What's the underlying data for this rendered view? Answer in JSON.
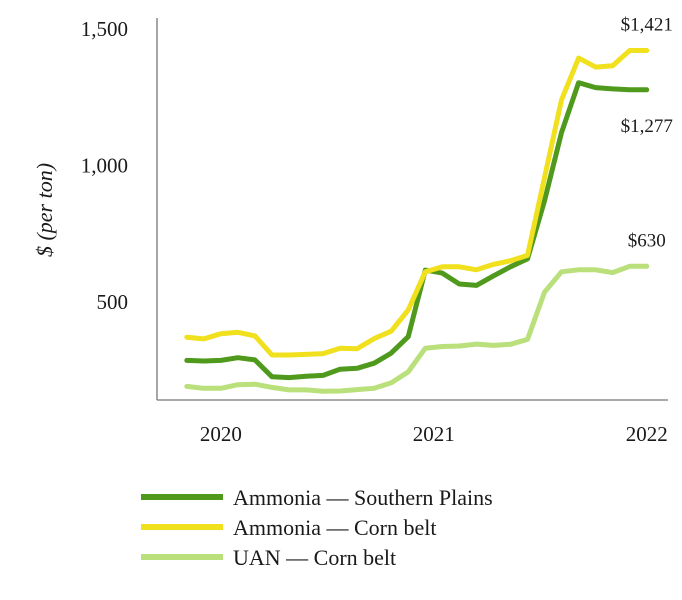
{
  "chart_data": {
    "type": "line",
    "title": "",
    "xlabel": "",
    "ylabel": "$ (per ton)",
    "ylim": [
      140,
      1540
    ],
    "xlim": [
      2019.7,
      2022.1
    ],
    "y_ticks": [
      {
        "value": 500,
        "label": "500"
      },
      {
        "value": 1000,
        "label": "1,000"
      },
      {
        "value": 1500,
        "label": "1,500"
      }
    ],
    "x_ticks": [
      {
        "value": 2020,
        "label": "2020"
      },
      {
        "value": 2021,
        "label": "2021"
      },
      {
        "value": 2022,
        "label": "2022"
      }
    ],
    "grid": false,
    "legend_position": "bottom",
    "series": [
      {
        "name": "Ammonia — Southern Plains",
        "color": "#4f9a1c",
        "x": [
          2019.84,
          2019.92,
          2020.0,
          2020.08,
          2020.16,
          2020.24,
          2020.32,
          2020.4,
          2020.48,
          2020.56,
          2020.64,
          2020.72,
          2020.8,
          2020.88,
          2020.96,
          2021.04,
          2021.12,
          2021.2,
          2021.28,
          2021.36,
          2021.44,
          2021.52,
          2021.6,
          2021.68,
          2021.76,
          2021.84,
          2021.92,
          2022.0
        ],
        "values": [
          285,
          283,
          285,
          295,
          287,
          225,
          222,
          227,
          230,
          253,
          256,
          275,
          312,
          372,
          616,
          605,
          565,
          560,
          595,
          628,
          657,
          870,
          1120,
          1303,
          1285,
          1280,
          1277,
          1277
        ]
      },
      {
        "name": "Ammonia — Corn belt",
        "color": "#f0e01e",
        "x": [
          2019.84,
          2019.92,
          2020.0,
          2020.08,
          2020.16,
          2020.24,
          2020.32,
          2020.4,
          2020.48,
          2020.56,
          2020.64,
          2020.72,
          2020.8,
          2020.88,
          2020.96,
          2021.04,
          2021.12,
          2021.2,
          2021.28,
          2021.36,
          2021.44,
          2021.52,
          2021.6,
          2021.68,
          2021.76,
          2021.84,
          2021.92,
          2022.0
        ],
        "values": [
          370,
          364,
          383,
          388,
          375,
          305,
          305,
          307,
          310,
          330,
          328,
          365,
          392,
          470,
          610,
          628,
          628,
          617,
          637,
          650,
          670,
          955,
          1240,
          1393,
          1360,
          1365,
          1421,
          1421
        ]
      },
      {
        "name": "UAN — Corn belt",
        "color": "#b9e07a",
        "x": [
          2019.84,
          2019.92,
          2020.0,
          2020.08,
          2020.16,
          2020.24,
          2020.32,
          2020.4,
          2020.48,
          2020.56,
          2020.64,
          2020.72,
          2020.8,
          2020.88,
          2020.96,
          2021.04,
          2021.12,
          2021.2,
          2021.28,
          2021.36,
          2021.44,
          2021.52,
          2021.6,
          2021.68,
          2021.76,
          2021.84,
          2021.92,
          2022.0
        ],
        "values": [
          190,
          183,
          183,
          196,
          198,
          186,
          177,
          177,
          172,
          173,
          178,
          183,
          203,
          243,
          330,
          336,
          338,
          345,
          340,
          344,
          362,
          535,
          610,
          617,
          617,
          607,
          630,
          630
        ]
      }
    ],
    "data_labels": [
      {
        "text": "$1,421",
        "x": 2022.0,
        "y": 1421,
        "position": "above"
      },
      {
        "text": "$1,277",
        "x": 2022.0,
        "y": 1277,
        "position": "below"
      },
      {
        "text": "$630",
        "x": 2022.0,
        "y": 630,
        "position": "above"
      }
    ]
  }
}
